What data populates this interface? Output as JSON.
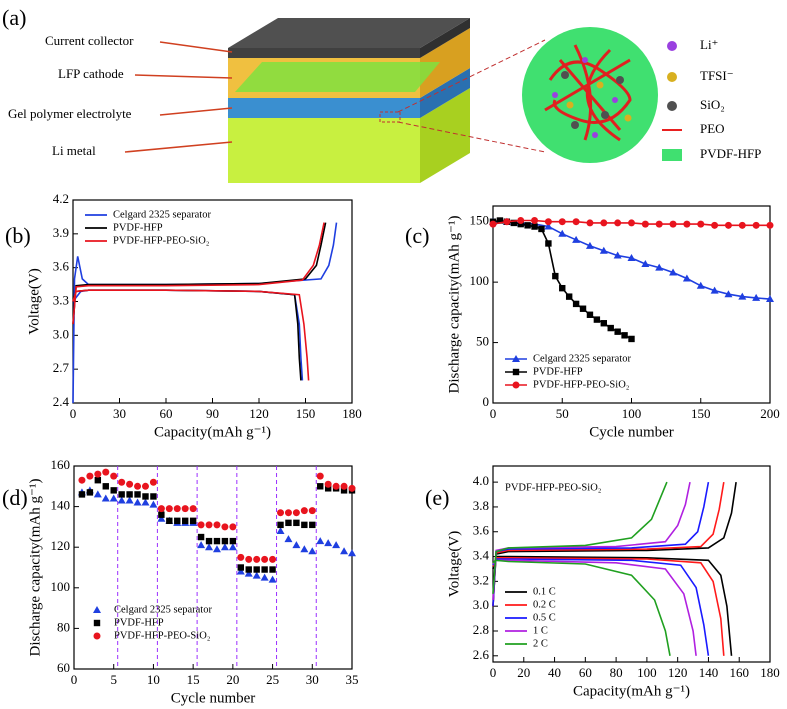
{
  "panels": [
    "(a)",
    "(b)",
    "(c)",
    "(d)",
    "(e)"
  ],
  "diagram": {
    "labels": [
      "Current collector",
      "LFP cathode",
      "Gel polymer electrolyte",
      "Li metal"
    ],
    "legend": [
      {
        "label": "Li⁺",
        "color": "#9a40e0",
        "shape": "ball"
      },
      {
        "label": "TFSI⁻",
        "color": "#d8b020",
        "shape": "ball"
      },
      {
        "label": "SiO₂",
        "color": "#505050",
        "shape": "ball"
      },
      {
        "label": "PEO",
        "color": "#e82020",
        "shape": "line"
      },
      {
        "label": "PVDF-HFP",
        "color": "#40e070",
        "shape": "rect"
      }
    ]
  },
  "chart_data": [
    {
      "type": "line",
      "xlabel": "Capacity(mAh g⁻¹)",
      "ylabel": "Voltage(V)",
      "legend": "upper left",
      "xlim": [
        0,
        180
      ],
      "xticks": [
        0,
        30,
        60,
        90,
        120,
        150,
        180
      ],
      "ylim": [
        2.4,
        4.2
      ],
      "yticks": [
        2.4,
        2.7,
        {
          "value": 3,
          "label": "3.0"
        },
        3.3,
        3.6,
        3.9,
        4.2
      ],
      "series": [
        {
          "name": "Celgard 2325 separator",
          "color": "#1f3fe0",
          "x": [
            0,
            0.5,
            1,
            3,
            6,
            10,
            60,
            120,
            160,
            165,
            168,
            170,
            null,
            0,
            5,
            10,
            60,
            120,
            143,
            146,
            147,
            148
          ],
          "values": [
            2.4,
            3.0,
            3.5,
            3.7,
            3.5,
            3.45,
            3.45,
            3.46,
            3.5,
            3.62,
            3.8,
            4.0,
            null,
            3.3,
            3.39,
            3.4,
            3.4,
            3.39,
            3.36,
            3.1,
            2.8,
            2.6
          ]
        },
        {
          "name": "PVDF-HFP",
          "color": "#000000",
          "x": [
            0,
            2,
            10,
            60,
            120,
            150,
            157,
            160,
            163,
            null,
            0,
            2,
            10,
            60,
            120,
            143,
            145,
            146,
            147
          ],
          "values": [
            3.1,
            3.44,
            3.45,
            3.45,
            3.46,
            3.5,
            3.62,
            3.8,
            4.0,
            null,
            3.3,
            3.39,
            3.4,
            3.4,
            3.39,
            3.36,
            3.1,
            2.8,
            2.6
          ]
        },
        {
          "name": "PVDF-HFP-PEO-SiO₂",
          "color": "#e8141e",
          "x": [
            0,
            2,
            10,
            60,
            120,
            148,
            155,
            159,
            162,
            null,
            0,
            2,
            10,
            60,
            120,
            146,
            149,
            151,
            152
          ],
          "values": [
            3.1,
            3.43,
            3.44,
            3.44,
            3.45,
            3.49,
            3.62,
            3.8,
            4.0,
            null,
            3.3,
            3.39,
            3.4,
            3.4,
            3.39,
            3.36,
            3.1,
            2.8,
            2.6
          ]
        }
      ]
    },
    {
      "type": "line",
      "xlabel": "Cycle number",
      "ylabel": "Discharge capacity(mAh g⁻¹)",
      "legend": "lower left",
      "xlim": [
        0,
        200
      ],
      "xticks": [
        0,
        50,
        100,
        150,
        200
      ],
      "ylim": [
        0,
        163
      ],
      "yticks": [
        0,
        50,
        100,
        150
      ],
      "series": [
        {
          "name": "Celgard 2325 separator",
          "color": "#1f3fe0",
          "marker": "triangle",
          "x": [
            0,
            10,
            20,
            30,
            40,
            50,
            60,
            70,
            80,
            90,
            100,
            110,
            120,
            130,
            140,
            150,
            160,
            170,
            180,
            190,
            200
          ],
          "values": [
            150,
            150,
            149,
            148,
            146,
            140,
            135,
            130,
            126,
            122,
            120,
            115,
            112,
            108,
            103,
            97,
            93,
            90,
            88,
            87,
            86
          ]
        },
        {
          "name": "PVDF-HFP",
          "color": "#000000",
          "marker": "square",
          "x": [
            0,
            5,
            10,
            15,
            20,
            25,
            30,
            35,
            40,
            45,
            50,
            55,
            60,
            65,
            70,
            75,
            80,
            85,
            90,
            95,
            100
          ],
          "values": [
            150,
            151,
            150,
            149,
            148,
            147,
            146,
            144,
            132,
            105,
            95,
            88,
            82,
            78,
            73,
            69,
            66,
            62,
            59,
            56,
            53
          ]
        },
        {
          "name": "PVDF-HFP-PEO-SiO₂",
          "color": "#e8141e",
          "marker": "circle",
          "x": [
            0,
            10,
            20,
            30,
            40,
            50,
            60,
            70,
            80,
            90,
            100,
            110,
            120,
            130,
            140,
            150,
            160,
            170,
            180,
            190,
            200
          ],
          "values": [
            148,
            150,
            151,
            151,
            150,
            150,
            150,
            149,
            149,
            149,
            149,
            148,
            148,
            148,
            148,
            148,
            147,
            147,
            147,
            147,
            147
          ]
        }
      ]
    },
    {
      "type": "scatter",
      "xlabel": "Cycle number",
      "ylabel": "Discharge capacity(mAh g⁻¹)",
      "legend": "lower left",
      "xlim": [
        0,
        35
      ],
      "xticks": [
        0,
        5,
        10,
        15,
        20,
        25,
        30,
        35
      ],
      "ylim": [
        60,
        160
      ],
      "yticks": [
        60,
        80,
        100,
        120,
        140,
        160
      ],
      "vlines": [
        5.5,
        10.5,
        15.5,
        20.5,
        25.5,
        30.5
      ],
      "vline_color": "#9b30ff",
      "x": [
        1,
        2,
        3,
        4,
        5,
        6,
        7,
        8,
        9,
        10,
        11,
        12,
        13,
        14,
        15,
        16,
        17,
        18,
        19,
        20,
        21,
        22,
        23,
        24,
        25,
        26,
        27,
        28,
        29,
        30,
        31,
        32,
        33,
        34,
        35
      ],
      "series": [
        {
          "name": "Celgard 2325 separator",
          "color": "#1f3fe0",
          "marker": "triangle",
          "values": [
            147,
            148,
            146,
            144,
            144,
            143,
            143,
            142,
            142,
            141,
            134,
            133,
            132,
            132,
            132,
            121,
            120,
            119,
            120,
            120,
            108,
            107,
            106,
            105,
            104,
            128,
            124,
            121,
            119,
            118,
            123,
            122,
            121,
            118,
            117
          ]
        },
        {
          "name": "PVDF-HFP",
          "color": "#000000",
          "marker": "square",
          "values": [
            146,
            147,
            153,
            150,
            148,
            146,
            146,
            146,
            145,
            145,
            136,
            133,
            133,
            133,
            133,
            125,
            123,
            123,
            123,
            123,
            110,
            109,
            109,
            109,
            109,
            131,
            132,
            132,
            131,
            131,
            150,
            149,
            149,
            148,
            148
          ]
        },
        {
          "name": "PVDF-HFP-PEO-SiO₂",
          "color": "#e8141e",
          "marker": "circle",
          "values": [
            153,
            155,
            156,
            157,
            155,
            152,
            151,
            150,
            150,
            152,
            139,
            139,
            139,
            139,
            139,
            131,
            131,
            131,
            130,
            130,
            115,
            114,
            114,
            114,
            114,
            137,
            137,
            137,
            138,
            138,
            155,
            151,
            150,
            150,
            149
          ]
        }
      ]
    },
    {
      "type": "line",
      "xlabel": "Capacity(mAh g⁻¹)",
      "ylabel": "Voltage(V)",
      "legend": "lower left",
      "annotation": "PVDF-HFP-PEO-SiO₂",
      "xlim": [
        0,
        180
      ],
      "xticks": [
        0,
        20,
        40,
        60,
        80,
        100,
        120,
        140,
        160,
        180
      ],
      "ylim": [
        2.55,
        4.13
      ],
      "yticks": [
        2.6,
        2.8,
        {
          "value": 3,
          "label": "3.0"
        },
        3.2,
        3.4,
        3.6,
        3.8,
        {
          "value": 4,
          "label": "4.0"
        }
      ],
      "series": [
        {
          "name": "0.1 C",
          "color": "#000000",
          "x": [
            0,
            2,
            10,
            100,
            140,
            150,
            155,
            158,
            null,
            0,
            2,
            10,
            100,
            140,
            148,
            152,
            155
          ],
          "values": [
            3.0,
            3.42,
            3.44,
            3.45,
            3.47,
            3.55,
            3.75,
            4.0,
            null,
            3.3,
            3.4,
            3.4,
            3.39,
            3.37,
            3.25,
            3.0,
            2.6
          ]
        },
        {
          "name": "0.2 C",
          "color": "#ff1a1a",
          "x": [
            0,
            2,
            10,
            100,
            135,
            143,
            147,
            150,
            null,
            0,
            2,
            10,
            100,
            135,
            143,
            148,
            150
          ],
          "values": [
            3.0,
            3.43,
            3.45,
            3.46,
            3.48,
            3.58,
            3.78,
            4.0,
            null,
            3.32,
            3.39,
            3.39,
            3.38,
            3.35,
            3.2,
            2.9,
            2.6
          ]
        },
        {
          "name": "0.5 C",
          "color": "#1a1aff",
          "x": [
            0,
            2,
            10,
            90,
            125,
            133,
            137,
            140,
            null,
            0,
            2,
            10,
            90,
            122,
            132,
            137,
            140
          ],
          "values": [
            3.0,
            3.44,
            3.46,
            3.47,
            3.5,
            3.6,
            3.8,
            4.0,
            null,
            3.33,
            3.38,
            3.38,
            3.37,
            3.33,
            3.15,
            2.85,
            2.6
          ]
        },
        {
          "name": "1 C",
          "color": "#b020e0",
          "x": [
            0,
            2,
            10,
            80,
            112,
            120,
            125,
            128,
            null,
            0,
            2,
            10,
            80,
            112,
            124,
            130,
            132
          ],
          "values": [
            3.05,
            3.45,
            3.47,
            3.48,
            3.52,
            3.65,
            3.82,
            4.0,
            null,
            3.34,
            3.37,
            3.37,
            3.35,
            3.3,
            3.1,
            2.8,
            2.6
          ]
        },
        {
          "name": "2 C",
          "color": "#20a020",
          "x": [
            0,
            2,
            10,
            60,
            90,
            103,
            108,
            113,
            null,
            0,
            2,
            10,
            60,
            90,
            105,
            112,
            115
          ],
          "values": [
            3.1,
            3.44,
            3.47,
            3.49,
            3.55,
            3.7,
            3.85,
            4.0,
            null,
            3.35,
            3.37,
            3.36,
            3.34,
            3.25,
            3.05,
            2.8,
            2.6
          ]
        }
      ]
    }
  ]
}
